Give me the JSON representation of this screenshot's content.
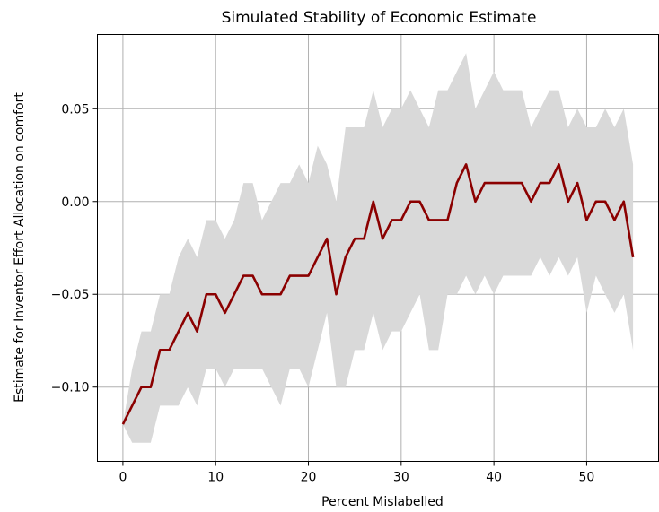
{
  "chart_data": {
    "type": "line",
    "title": "Simulated Stability of Economic Estimate",
    "xlabel": "Percent Mislabelled",
    "ylabel": "Estimate for Inventor Effort Allocation on comfort",
    "xlim": [
      -2.75,
      57.75
    ],
    "ylim": [
      -0.14,
      0.09
    ],
    "x_ticks": [
      0,
      10,
      20,
      30,
      40,
      50
    ],
    "x_tick_labels": [
      "0",
      "10",
      "20",
      "30",
      "40",
      "50"
    ],
    "y_ticks": [
      -0.1,
      -0.05,
      0.0,
      0.05
    ],
    "y_tick_labels": [
      "−0.10",
      "−0.05",
      "0.00",
      "0.05"
    ],
    "grid": true,
    "line_color": "#8b0000",
    "band_color": "#d9d9d9",
    "x": [
      0,
      1,
      2,
      3,
      4,
      5,
      6,
      7,
      8,
      9,
      10,
      11,
      12,
      13,
      14,
      15,
      16,
      17,
      18,
      19,
      20,
      21,
      22,
      23,
      24,
      25,
      26,
      27,
      28,
      29,
      30,
      31,
      32,
      33,
      34,
      35,
      36,
      37,
      38,
      39,
      40,
      41,
      42,
      43,
      44,
      45,
      46,
      47,
      48,
      49,
      50,
      51,
      52,
      53,
      54,
      55
    ],
    "series": [
      {
        "values": [
          -0.12,
          -0.11,
          -0.1,
          -0.1,
          -0.08,
          -0.08,
          -0.07,
          -0.06,
          -0.07,
          -0.05,
          -0.05,
          -0.06,
          -0.05,
          -0.04,
          -0.04,
          -0.05,
          -0.05,
          -0.05,
          -0.04,
          -0.04,
          -0.04,
          -0.03,
          -0.02,
          -0.05,
          -0.03,
          -0.02,
          -0.02,
          0.0,
          -0.02,
          -0.01,
          -0.01,
          0.0,
          0.0,
          -0.01,
          -0.01,
          -0.01,
          0.01,
          0.02,
          0.0,
          0.01,
          0.01,
          0.01,
          0.01,
          0.01,
          0.0,
          0.01,
          0.01,
          0.02,
          0.0,
          0.01,
          -0.01,
          0.0,
          0.0,
          -0.01,
          0.0,
          -0.03
        ]
      }
    ],
    "band": {
      "upper": [
        -0.12,
        -0.09,
        -0.07,
        -0.07,
        -0.05,
        -0.05,
        -0.03,
        -0.02,
        -0.03,
        -0.01,
        -0.01,
        -0.02,
        -0.01,
        0.01,
        0.01,
        -0.01,
        0.0,
        0.01,
        0.01,
        0.02,
        0.01,
        0.03,
        0.02,
        0.0,
        0.04,
        0.04,
        0.04,
        0.06,
        0.04,
        0.05,
        0.05,
        0.06,
        0.05,
        0.04,
        0.06,
        0.06,
        0.07,
        0.08,
        0.05,
        0.06,
        0.07,
        0.06,
        0.06,
        0.06,
        0.04,
        0.05,
        0.06,
        0.06,
        0.04,
        0.05,
        0.04,
        0.04,
        0.05,
        0.04,
        0.05,
        0.02
      ],
      "lower": [
        -0.12,
        -0.13,
        -0.13,
        -0.13,
        -0.11,
        -0.11,
        -0.11,
        -0.1,
        -0.11,
        -0.09,
        -0.09,
        -0.1,
        -0.09,
        -0.09,
        -0.09,
        -0.09,
        -0.1,
        -0.11,
        -0.09,
        -0.09,
        -0.1,
        -0.08,
        -0.06,
        -0.1,
        -0.1,
        -0.08,
        -0.08,
        -0.06,
        -0.08,
        -0.07,
        -0.07,
        -0.06,
        -0.05,
        -0.08,
        -0.08,
        -0.05,
        -0.05,
        -0.04,
        -0.05,
        -0.04,
        -0.05,
        -0.04,
        -0.04,
        -0.04,
        -0.04,
        -0.03,
        -0.04,
        -0.03,
        -0.04,
        -0.03,
        -0.06,
        -0.04,
        -0.05,
        -0.06,
        -0.05,
        -0.08
      ]
    }
  }
}
